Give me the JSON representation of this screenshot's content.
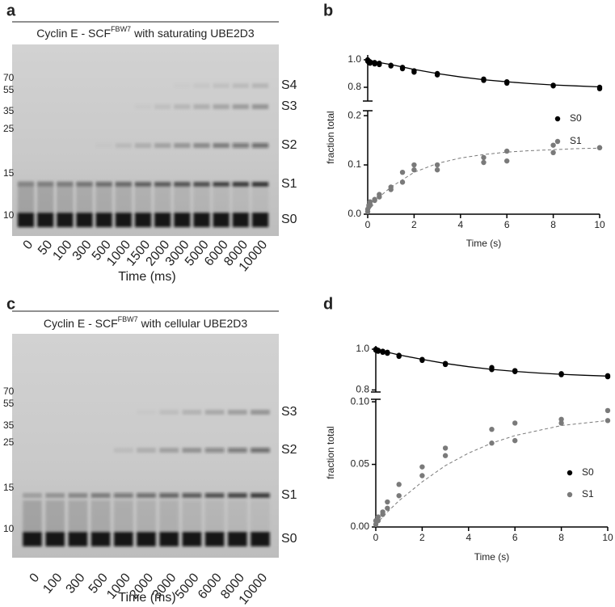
{
  "panels": [
    {
      "letter": "a",
      "title": {
        "main": "Cyclin E - SCF",
        "superscript": "FBW7",
        "rest": "with saturating UBE2D3"
      },
      "markers": [
        70,
        55,
        35,
        25,
        15,
        10
      ],
      "bands": [
        "S4",
        "S3",
        "S2",
        "S1",
        "S0"
      ],
      "lanes": [
        0,
        50,
        100,
        300,
        500,
        1000,
        1500,
        2000,
        3000,
        5000,
        6000,
        8000,
        10000
      ],
      "xlabel": "Time (ms)"
    },
    {
      "letter": "c",
      "title": {
        "main": "Cyclin E - SCF",
        "superscript": "FBW7",
        "rest": "with cellular UBE2D3"
      },
      "markers": [
        70,
        55,
        35,
        25,
        15,
        10
      ],
      "bands": [
        "S3",
        "S2",
        "S1",
        "S0"
      ],
      "lanes": [
        0,
        100,
        300,
        500,
        1000,
        2000,
        3000,
        5000,
        6000,
        8000,
        10000
      ],
      "xlabel": "Time (ms)"
    }
  ],
  "chart_data": [
    {
      "type": "scatter",
      "letter": "b",
      "xlabel": "Time (s)",
      "ylabel": "fraction total",
      "xlim": [
        0,
        10
      ],
      "xticks": [
        0,
        2,
        4,
        6,
        8,
        10
      ],
      "legend": "upper right",
      "y_segments": [
        {
          "ylim": [
            0.7,
            1.035
          ],
          "yticks": [
            {
              "value": 1.0,
              "label": "1.0"
            },
            0.8
          ]
        },
        {
          "ylim": [
            0,
            0.21
          ],
          "yticks": [
            {
              "value": 0,
              "label": "0.0"
            },
            0.1,
            0.2
          ]
        }
      ],
      "fit_x": [
        0,
        0.5,
        1,
        2,
        3,
        4,
        5,
        6,
        7,
        8,
        9,
        10
      ],
      "series": [
        {
          "name": "S0",
          "color": "#000000",
          "segment": 0,
          "fit_style": "solid",
          "x": [
            0,
            0,
            0.05,
            0.05,
            0.1,
            0.1,
            0.3,
            0.3,
            0.5,
            0.5,
            1,
            1,
            1.5,
            1.5,
            2,
            2,
            3,
            3,
            5,
            5,
            6,
            6,
            8,
            8,
            10,
            10
          ],
          "values": [
            1.0,
            0.99,
            0.99,
            0.98,
            0.985,
            0.975,
            0.98,
            0.97,
            0.975,
            0.965,
            0.96,
            0.955,
            0.945,
            0.935,
            0.92,
            0.91,
            0.9,
            0.89,
            0.86,
            0.85,
            0.84,
            0.83,
            0.815,
            0.81,
            0.8,
            0.79
          ],
          "fit_values": [
            1.0,
            0.98,
            0.965,
            0.93,
            0.9,
            0.875,
            0.855,
            0.84,
            0.827,
            0.817,
            0.81,
            0.803
          ]
        },
        {
          "name": "S1",
          "color": "#7a7a7a",
          "segment": 1,
          "fit_style": "dashed",
          "x": [
            0,
            0,
            0.05,
            0.05,
            0.1,
            0.1,
            0.3,
            0.3,
            0.5,
            0.5,
            1,
            1,
            1.5,
            1.5,
            2,
            2,
            3,
            3,
            5,
            5,
            6,
            6,
            8,
            8,
            10,
            10
          ],
          "values": [
            0.005,
            0.01,
            0.015,
            0.018,
            0.02,
            0.025,
            0.03,
            0.028,
            0.04,
            0.035,
            0.055,
            0.05,
            0.085,
            0.065,
            0.09,
            0.1,
            0.1,
            0.09,
            0.115,
            0.105,
            0.128,
            0.108,
            0.14,
            0.125,
            0.135,
            0.135
          ],
          "fit_values": [
            0.005,
            0.035,
            0.055,
            0.085,
            0.103,
            0.114,
            0.121,
            0.126,
            0.129,
            0.131,
            0.133,
            0.134
          ]
        }
      ]
    },
    {
      "type": "scatter",
      "letter": "d",
      "xlabel": "Time (s)",
      "ylabel": "fraction total",
      "xlim": [
        0,
        10
      ],
      "xticks": [
        0,
        2,
        4,
        6,
        8,
        10
      ],
      "legend": "lower right",
      "y_segments": [
        {
          "ylim": [
            0.79,
            1.016
          ],
          "yticks": [
            {
              "value": 1.0,
              "label": "1.0"
            },
            0.8
          ]
        },
        {
          "ylim": [
            0,
            0.102
          ],
          "yticks": [
            {
              "value": 0,
              "label": "0.00"
            },
            {
              "value": 0.05,
              "label": "0.05"
            },
            {
              "value": 0.1,
              "label": "0.10"
            }
          ]
        }
      ],
      "fit_x": [
        0,
        0.5,
        1,
        2,
        3,
        4,
        5,
        6,
        7,
        8,
        9,
        10
      ],
      "series": [
        {
          "name": "S0",
          "color": "#000000",
          "segment": 0,
          "fit_style": "solid",
          "x": [
            0,
            0,
            0.1,
            0.1,
            0.3,
            0.3,
            0.5,
            0.5,
            1,
            1,
            2,
            2,
            3,
            3,
            5,
            5,
            6,
            6,
            8,
            8,
            10,
            10
          ],
          "values": [
            1.0,
            0.995,
            0.995,
            0.99,
            0.99,
            0.985,
            0.985,
            0.98,
            0.97,
            0.965,
            0.95,
            0.945,
            0.93,
            0.925,
            0.91,
            0.9,
            0.895,
            0.89,
            0.88,
            0.875,
            0.87,
            0.865
          ],
          "fit_values": [
            1.0,
            0.985,
            0.972,
            0.95,
            0.93,
            0.914,
            0.901,
            0.891,
            0.883,
            0.877,
            0.872,
            0.868
          ]
        },
        {
          "name": "S1",
          "color": "#7a7a7a",
          "segment": 1,
          "fit_style": "dashed",
          "x": [
            0,
            0,
            0.1,
            0.1,
            0.3,
            0.3,
            0.5,
            0.5,
            1,
            1,
            2,
            2,
            3,
            3,
            5,
            5,
            6,
            6,
            8,
            8,
            10,
            10
          ],
          "values": [
            0.002,
            0.005,
            0.005,
            0.008,
            0.01,
            0.012,
            0.02,
            0.015,
            0.034,
            0.025,
            0.048,
            0.041,
            0.063,
            0.057,
            0.078,
            0.067,
            0.083,
            0.069,
            0.086,
            0.083,
            0.093,
            0.085
          ],
          "fit_values": [
            0.002,
            0.012,
            0.021,
            0.036,
            0.049,
            0.059,
            0.067,
            0.073,
            0.077,
            0.081,
            0.083,
            0.085
          ]
        }
      ]
    }
  ]
}
